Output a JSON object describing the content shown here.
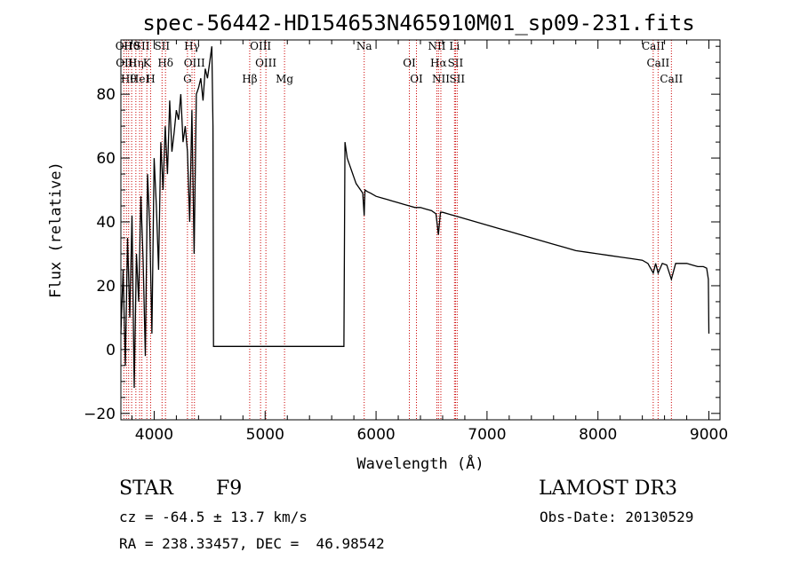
{
  "chart_data": {
    "type": "line",
    "title": "spec-56442-HD154653N465910M01_sp09-231.fits",
    "xlabel": "Wavelength (Å)",
    "ylabel": "Flux (relative)",
    "xlim": [
      3700,
      9100
    ],
    "ylim": [
      -22,
      97
    ],
    "xticks": [
      4000,
      5000,
      6000,
      7000,
      8000,
      9000
    ],
    "yticks": [
      -20,
      0,
      20,
      40,
      60,
      80
    ],
    "series": [
      {
        "name": "spectrum",
        "x": [
          3700,
          3720,
          3740,
          3760,
          3780,
          3800,
          3820,
          3840,
          3860,
          3880,
          3900,
          3920,
          3940,
          3960,
          3980,
          4000,
          4020,
          4040,
          4060,
          4080,
          4100,
          4120,
          4140,
          4160,
          4180,
          4200,
          4220,
          4240,
          4260,
          4280,
          4300,
          4320,
          4340,
          4360,
          4380,
          4400,
          4420,
          4440,
          4460,
          4480,
          4500,
          4520,
          4530,
          4535,
          5680,
          5690,
          5700,
          5710,
          5720,
          5740,
          5760,
          5780,
          5800,
          5820,
          5840,
          5860,
          5880,
          5893,
          5900,
          5920,
          5950,
          6000,
          6050,
          6100,
          6150,
          6200,
          6250,
          6300,
          6350,
          6400,
          6450,
          6500,
          6540,
          6562,
          6580,
          6600,
          6650,
          6700,
          6800,
          6900,
          7000,
          7100,
          7200,
          7300,
          7400,
          7500,
          7600,
          7700,
          7800,
          7900,
          8000,
          8100,
          8200,
          8300,
          8400,
          8450,
          8498,
          8520,
          8542,
          8580,
          8620,
          8662,
          8700,
          8750,
          8800,
          8850,
          8900,
          8950,
          8980,
          8995,
          9000
        ],
        "values": [
          5,
          25,
          -5,
          35,
          10,
          42,
          -12,
          30,
          15,
          48,
          28,
          -2,
          55,
          38,
          5,
          60,
          45,
          25,
          65,
          50,
          70,
          55,
          78,
          62,
          68,
          75,
          72,
          80,
          65,
          70,
          62,
          40,
          75,
          30,
          80,
          82,
          85,
          78,
          88,
          85,
          90,
          95,
          70,
          1,
          1,
          1,
          1,
          1,
          65,
          60,
          58,
          56,
          54,
          52,
          51,
          50,
          49,
          42,
          50,
          49.5,
          49,
          48,
          47.5,
          47,
          46.5,
          46,
          45.5,
          45,
          44.5,
          44.5,
          44,
          43.5,
          42.5,
          36,
          43,
          43,
          42.5,
          42,
          41,
          40,
          39,
          38,
          37,
          36,
          35,
          34,
          33,
          32,
          31,
          30.5,
          30,
          29.5,
          29,
          28.5,
          28,
          27,
          24,
          27,
          24,
          27,
          26.5,
          22,
          27,
          27,
          27,
          26.5,
          26,
          26,
          25.5,
          22,
          5
        ]
      }
    ],
    "lines": [
      {
        "x": 3727,
        "label": "OII"
      },
      {
        "x": 3750,
        "label": "OIII"
      },
      {
        "x": 3770,
        "label": "Hθ"
      },
      {
        "x": 3797,
        "label": "Hθ"
      },
      {
        "x": 3835,
        "label": "Hη"
      },
      {
        "x": 3869,
        "label": "HeI"
      },
      {
        "x": 3889,
        "label": "SII"
      },
      {
        "x": 3934,
        "label": "K"
      },
      {
        "x": 3968,
        "label": "H"
      },
      {
        "x": 4071,
        "label": "SII"
      },
      {
        "x": 4102,
        "label": "Hδ"
      },
      {
        "x": 4300,
        "label": "G"
      },
      {
        "x": 4341,
        "label": "Hγ"
      },
      {
        "x": 4363,
        "label": "OIII"
      },
      {
        "x": 4861,
        "label": "Hβ"
      },
      {
        "x": 4959,
        "label": "OIII"
      },
      {
        "x": 5007,
        "label": "OIII"
      },
      {
        "x": 5175,
        "label": "Mg"
      },
      {
        "x": 5893,
        "label": "Na"
      },
      {
        "x": 6300,
        "label": "OI"
      },
      {
        "x": 6364,
        "label": "OI"
      },
      {
        "x": 6548,
        "label": "NII"
      },
      {
        "x": 6563,
        "label": "Hα"
      },
      {
        "x": 6584,
        "label": "NII"
      },
      {
        "x": 6707,
        "label": "Li"
      },
      {
        "x": 6716,
        "label": "SII"
      },
      {
        "x": 6731,
        "label": "SII"
      },
      {
        "x": 8498,
        "label": "CaII"
      },
      {
        "x": 8542,
        "label": "CaII"
      },
      {
        "x": 8662,
        "label": "CaII"
      }
    ]
  },
  "info": {
    "class_label": "STAR",
    "subclass": "F9",
    "survey": "LAMOST DR3",
    "redshift": "cz = -64.5 ± 13.7 km/s",
    "obs_date": "Obs-Date: 20130529",
    "coords": "RA = 238.33457, DEC =  46.98542"
  },
  "colors": {
    "line_marker": "#cc0000",
    "spectrum": "#000000",
    "axes": "#000000"
  }
}
